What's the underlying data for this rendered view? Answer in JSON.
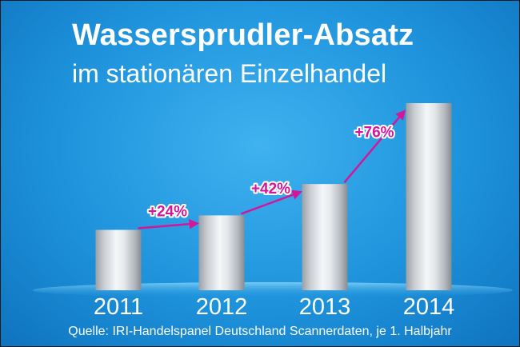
{
  "chart_data": {
    "type": "bar",
    "title": "Wassersprudler-Absatz",
    "subtitle": "im stationären Einzelhandel",
    "categories": [
      "2011",
      "2012",
      "2013",
      "2014"
    ],
    "values": [
      1.0,
      1.24,
      1.76,
      3.1
    ],
    "growth_labels": [
      "+24%",
      "+42%",
      "+76%"
    ],
    "source": "Quelle: IRI-Handelspanel Deutschland Scannerdaten, je 1. Halbjahr",
    "grid": false,
    "legend": "none",
    "colors": {
      "bar_light": "#f2f4f6",
      "bar_dark": "#8d9299",
      "arrow": "#d4169a",
      "background": "#1e93dc"
    }
  }
}
